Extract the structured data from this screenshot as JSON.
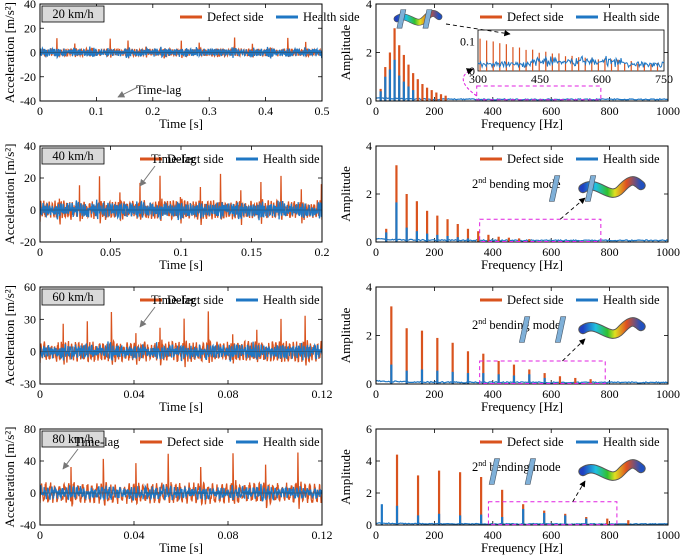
{
  "figure": {
    "colors": {
      "defect": "#d9531e",
      "health": "#1f77c4",
      "annotation_box": "#e020e0",
      "arrow": "#000000",
      "label_box": "#d9d9d9"
    },
    "legend": {
      "defect": "Defect side",
      "health": "Health side"
    }
  },
  "chart_data": [
    {
      "type": "line",
      "panel": "time-20",
      "speed_label": "20 km/h",
      "xlabel": "Time [s]",
      "ylabel": "Acceleration [m/s²]",
      "xlim": [
        0,
        0.5
      ],
      "ylim": [
        -40,
        40
      ],
      "xticks": [
        0,
        0.1,
        0.2,
        0.3,
        0.4,
        0.5
      ],
      "yticks": [
        -40,
        -20,
        0,
        20,
        40
      ],
      "xtick_labels": [
        "0",
        "0.1",
        "0.2",
        "0.3",
        "0.4",
        "0.5"
      ],
      "ytick_labels": [
        "-40",
        "-20",
        "0",
        "20",
        "40"
      ],
      "annotation": "Time-lag",
      "impact_period_s": 0.0315,
      "defect_peak": 14,
      "health_peak": 5
    },
    {
      "type": "bar",
      "panel": "freq-20",
      "xlabel": "Frequency [Hz]",
      "ylabel": "Amplitude",
      "xlim": [
        0,
        1000
      ],
      "ylim": [
        0,
        4
      ],
      "xticks": [
        0,
        200,
        400,
        600,
        800,
        1000
      ],
      "yticks": [
        0,
        2,
        4
      ],
      "xtick_labels": [
        "0",
        "200",
        "400",
        "600",
        "800",
        "1000"
      ],
      "ytick_labels": [
        "0",
        "2",
        "4"
      ],
      "harmonic_spacing_hz": 15.9,
      "defect_peaks": [
        [
          15.9,
          0.5
        ],
        [
          31.8,
          1.4
        ],
        [
          47.7,
          2.0
        ],
        [
          63.6,
          3.0
        ],
        [
          79.5,
          2.3
        ],
        [
          95.4,
          1.9
        ],
        [
          111.3,
          1.5
        ],
        [
          127.2,
          1.15
        ],
        [
          143.1,
          0.9
        ],
        [
          159,
          0.7
        ],
        [
          174.9,
          0.55
        ],
        [
          190.8,
          0.45
        ],
        [
          206.7,
          0.35
        ],
        [
          222.6,
          0.28
        ],
        [
          238.5,
          0.22
        ]
      ],
      "health_peaks": [
        [
          15.9,
          0.4
        ],
        [
          31.8,
          1.0
        ],
        [
          47.7,
          1.3
        ],
        [
          63.6,
          1.7
        ],
        [
          79.5,
          1.05
        ],
        [
          95.4,
          0.8
        ],
        [
          111.3,
          0.6
        ],
        [
          127.2,
          0.45
        ]
      ],
      "inset": {
        "xlim": [
          300,
          750
        ],
        "ylim": [
          0,
          0.1
        ],
        "xticks": [
          300,
          450,
          600,
          750
        ],
        "yticks": [
          0,
          0.1
        ],
        "xtick_labels": [
          "300",
          "450",
          "600",
          "750"
        ],
        "ytick_labels": [
          "0",
          "0.1"
        ]
      }
    },
    {
      "type": "line",
      "panel": "time-40",
      "speed_label": "40 km/h",
      "xlabel": "Time [s]",
      "ylabel": "Acceleration [m/s²]",
      "xlim": [
        0,
        0.2
      ],
      "ylim": [
        -20,
        40
      ],
      "xticks": [
        0,
        0.05,
        0.1,
        0.15,
        0.2
      ],
      "yticks": [
        -20,
        0,
        20,
        40
      ],
      "xtick_labels": [
        "0",
        "0.05",
        "0.1",
        "0.15",
        "0.2"
      ],
      "ytick_labels": [
        "-20",
        "0",
        "20",
        "40"
      ],
      "annotation": "Time-lag",
      "impact_period_s": 0.0143,
      "defect_peak": 26,
      "health_peak": 7
    },
    {
      "type": "bar",
      "panel": "freq-40",
      "xlabel": "Frequency [Hz]",
      "ylabel": "Amplitude",
      "xlim": [
        0,
        1000
      ],
      "ylim": [
        0,
        4
      ],
      "xticks": [
        0,
        200,
        400,
        600,
        800,
        1000
      ],
      "yticks": [
        0,
        2,
        4
      ],
      "xtick_labels": [
        "0",
        "200",
        "400",
        "600",
        "800",
        "1000"
      ],
      "ytick_labels": [
        "0",
        "2",
        "4"
      ],
      "harmonic_spacing_hz": 35,
      "defect_peaks": [
        [
          35,
          0.55
        ],
        [
          70,
          3.2
        ],
        [
          105,
          2.0
        ],
        [
          140,
          1.7
        ],
        [
          175,
          1.3
        ],
        [
          210,
          1.1
        ],
        [
          245,
          0.95
        ],
        [
          280,
          0.75
        ],
        [
          315,
          0.55
        ],
        [
          350,
          0.45
        ],
        [
          385,
          0.3
        ],
        [
          420,
          0.22
        ],
        [
          455,
          0.18
        ],
        [
          490,
          0.15
        ],
        [
          525,
          0.12
        ]
      ],
      "health_peaks": [
        [
          35,
          0.4
        ],
        [
          70,
          1.65
        ],
        [
          105,
          0.6
        ],
        [
          140,
          0.45
        ],
        [
          175,
          0.35
        ],
        [
          210,
          0.3
        ],
        [
          245,
          0.25
        ],
        [
          280,
          0.2
        ],
        [
          315,
          0.15
        ]
      ],
      "annotation": {
        "mode_base": "2",
        "mode_sup": "nd",
        "mode_rest": " bending mode",
        "box_hz": [
          355,
          770
        ],
        "box_amp": [
          0.02,
          0.95
        ]
      }
    },
    {
      "type": "line",
      "panel": "time-60",
      "speed_label": "60 km/h",
      "xlabel": "Time [s]",
      "ylabel": "Acceleration [m/s²]",
      "xlim": [
        0,
        0.12
      ],
      "ylim": [
        -30,
        60
      ],
      "xticks": [
        0,
        0.04,
        0.08,
        0.12
      ],
      "yticks": [
        -30,
        0,
        30,
        60
      ],
      "xtick_labels": [
        "0",
        "0.04",
        "0.08",
        "0.12"
      ],
      "ytick_labels": [
        "-30",
        "0",
        "30",
        "60"
      ],
      "annotation": "Time-lag",
      "impact_period_s": 0.0103,
      "defect_peak": 42,
      "health_peak": 10
    },
    {
      "type": "bar",
      "panel": "freq-60",
      "xlabel": "Frequency [Hz]",
      "ylabel": "Amplitude",
      "xlim": [
        0,
        1000
      ],
      "ylim": [
        0,
        4
      ],
      "xticks": [
        0,
        200,
        400,
        600,
        800,
        1000
      ],
      "yticks": [
        0,
        2,
        4
      ],
      "xtick_labels": [
        "0",
        "200",
        "400",
        "600",
        "800",
        "1000"
      ],
      "ytick_labels": [
        "0",
        "2",
        "4"
      ],
      "harmonic_spacing_hz": 52.5,
      "defect_peaks": [
        [
          52.5,
          3.2
        ],
        [
          105,
          2.3
        ],
        [
          157.5,
          2.2
        ],
        [
          210,
          1.9
        ],
        [
          262.5,
          1.7
        ],
        [
          315,
          1.35
        ],
        [
          367.5,
          1.25
        ],
        [
          420,
          0.95
        ],
        [
          472.5,
          0.8
        ],
        [
          525,
          0.6
        ],
        [
          577.5,
          0.45
        ],
        [
          630,
          0.32
        ],
        [
          682.5,
          0.25
        ],
        [
          735,
          0.2
        ]
      ],
      "health_peaks": [
        [
          52.5,
          0.8
        ],
        [
          105,
          0.55
        ],
        [
          157.5,
          0.6
        ],
        [
          210,
          0.55
        ],
        [
          262.5,
          0.5
        ],
        [
          315,
          0.45
        ],
        [
          367.5,
          0.45
        ],
        [
          420,
          0.4
        ],
        [
          472.5,
          0.35
        ],
        [
          525,
          0.4
        ],
        [
          577.5,
          0.25
        ]
      ],
      "annotation": {
        "mode_base": "2",
        "mode_sup": "nd",
        "mode_rest": " bending mode",
        "box_hz": [
          355,
          785
        ],
        "box_amp": [
          0.02,
          0.95
        ]
      }
    },
    {
      "type": "line",
      "panel": "time-80",
      "speed_label": "80 km/h",
      "xlabel": "Time [s]",
      "ylabel": "Acceleration [m/s²]",
      "xlim": [
        0,
        0.12
      ],
      "ylim": [
        -40,
        80
      ],
      "xticks": [
        0,
        0.04,
        0.08,
        0.12
      ],
      "yticks": [
        -40,
        0,
        40,
        80
      ],
      "xtick_labels": [
        "0",
        "0.04",
        "0.08",
        "0.12"
      ],
      "ytick_labels": [
        "-40",
        "0",
        "40",
        "80"
      ],
      "annotation": "Time-lag",
      "impact_period_s": 0.0138,
      "defect_peak": 58,
      "health_peak": 12
    },
    {
      "type": "bar",
      "panel": "freq-80",
      "xlabel": "Frequency [Hz]",
      "ylabel": "Amplitude",
      "xlim": [
        0,
        1000
      ],
      "ylim": [
        0,
        6
      ],
      "xticks": [
        0,
        200,
        400,
        600,
        800,
        1000
      ],
      "yticks": [
        0,
        2,
        4,
        6
      ],
      "xtick_labels": [
        "0",
        "200",
        "400",
        "600",
        "800",
        "1000"
      ],
      "ytick_labels": [
        "0",
        "2",
        "4",
        "6"
      ],
      "harmonic_spacing_hz": 72,
      "defect_peaks": [
        [
          72,
          4.4
        ],
        [
          144,
          3.1
        ],
        [
          216,
          3.4
        ],
        [
          288,
          3.3
        ],
        [
          360,
          3.0
        ],
        [
          432,
          2.2
        ],
        [
          504,
          1.3
        ],
        [
          576,
          0.9
        ],
        [
          648,
          0.7
        ],
        [
          720,
          0.5
        ],
        [
          792,
          0.4
        ],
        [
          864,
          0.3
        ]
      ],
      "health_peaks": [
        [
          20,
          1.3
        ],
        [
          72,
          1.2
        ],
        [
          144,
          0.6
        ],
        [
          216,
          0.7
        ],
        [
          288,
          0.6
        ],
        [
          360,
          0.65
        ],
        [
          432,
          0.5
        ],
        [
          504,
          1.0
        ],
        [
          576,
          0.75
        ],
        [
          648,
          0.6
        ],
        [
          720,
          0.4
        ]
      ],
      "annotation": {
        "mode_base": "2",
        "mode_sup": "nd",
        "mode_rest": " bending mode",
        "box_hz": [
          385,
          825
        ],
        "box_amp": [
          0.02,
          1.45
        ]
      }
    }
  ]
}
